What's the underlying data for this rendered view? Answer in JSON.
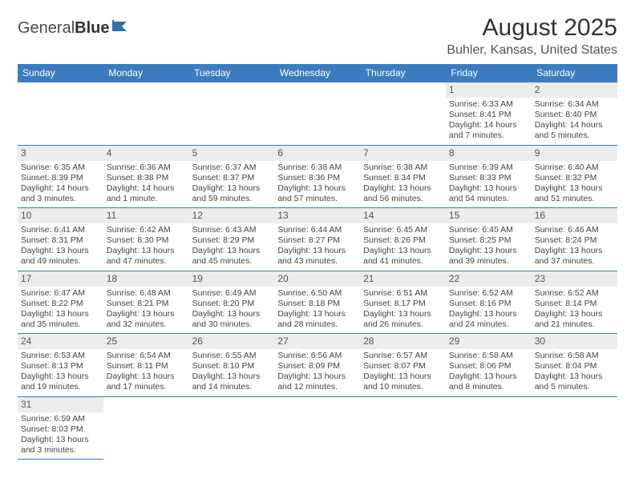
{
  "logo": {
    "word1": "General",
    "word2": "Blue",
    "accent_color": "#2f6fb0"
  },
  "title": "August 2025",
  "location": "Buhler, Kansas, United States",
  "colors": {
    "header_bg": "#3b7cc0",
    "header_text": "#ffffff",
    "border": "#3b7cc0",
    "daynum_bg": "#ececec",
    "text": "#444444"
  },
  "weekdays": [
    "Sunday",
    "Monday",
    "Tuesday",
    "Wednesday",
    "Thursday",
    "Friday",
    "Saturday"
  ],
  "weeks": [
    [
      null,
      null,
      null,
      null,
      null,
      {
        "n": "1",
        "sr": "Sunrise: 6:33 AM",
        "ss": "Sunset: 8:41 PM",
        "dl1": "Daylight: 14 hours",
        "dl2": "and 7 minutes."
      },
      {
        "n": "2",
        "sr": "Sunrise: 6:34 AM",
        "ss": "Sunset: 8:40 PM",
        "dl1": "Daylight: 14 hours",
        "dl2": "and 5 minutes."
      }
    ],
    [
      {
        "n": "3",
        "sr": "Sunrise: 6:35 AM",
        "ss": "Sunset: 8:39 PM",
        "dl1": "Daylight: 14 hours",
        "dl2": "and 3 minutes."
      },
      {
        "n": "4",
        "sr": "Sunrise: 6:36 AM",
        "ss": "Sunset: 8:38 PM",
        "dl1": "Daylight: 14 hours",
        "dl2": "and 1 minute."
      },
      {
        "n": "5",
        "sr": "Sunrise: 6:37 AM",
        "ss": "Sunset: 8:37 PM",
        "dl1": "Daylight: 13 hours",
        "dl2": "and 59 minutes."
      },
      {
        "n": "6",
        "sr": "Sunrise: 6:38 AM",
        "ss": "Sunset: 8:36 PM",
        "dl1": "Daylight: 13 hours",
        "dl2": "and 57 minutes."
      },
      {
        "n": "7",
        "sr": "Sunrise: 6:38 AM",
        "ss": "Sunset: 8:34 PM",
        "dl1": "Daylight: 13 hours",
        "dl2": "and 56 minutes."
      },
      {
        "n": "8",
        "sr": "Sunrise: 6:39 AM",
        "ss": "Sunset: 8:33 PM",
        "dl1": "Daylight: 13 hours",
        "dl2": "and 54 minutes."
      },
      {
        "n": "9",
        "sr": "Sunrise: 6:40 AM",
        "ss": "Sunset: 8:32 PM",
        "dl1": "Daylight: 13 hours",
        "dl2": "and 51 minutes."
      }
    ],
    [
      {
        "n": "10",
        "sr": "Sunrise: 6:41 AM",
        "ss": "Sunset: 8:31 PM",
        "dl1": "Daylight: 13 hours",
        "dl2": "and 49 minutes."
      },
      {
        "n": "11",
        "sr": "Sunrise: 6:42 AM",
        "ss": "Sunset: 8:30 PM",
        "dl1": "Daylight: 13 hours",
        "dl2": "and 47 minutes."
      },
      {
        "n": "12",
        "sr": "Sunrise: 6:43 AM",
        "ss": "Sunset: 8:29 PM",
        "dl1": "Daylight: 13 hours",
        "dl2": "and 45 minutes."
      },
      {
        "n": "13",
        "sr": "Sunrise: 6:44 AM",
        "ss": "Sunset: 8:27 PM",
        "dl1": "Daylight: 13 hours",
        "dl2": "and 43 minutes."
      },
      {
        "n": "14",
        "sr": "Sunrise: 6:45 AM",
        "ss": "Sunset: 8:26 PM",
        "dl1": "Daylight: 13 hours",
        "dl2": "and 41 minutes."
      },
      {
        "n": "15",
        "sr": "Sunrise: 6:45 AM",
        "ss": "Sunset: 8:25 PM",
        "dl1": "Daylight: 13 hours",
        "dl2": "and 39 minutes."
      },
      {
        "n": "16",
        "sr": "Sunrise: 6:46 AM",
        "ss": "Sunset: 8:24 PM",
        "dl1": "Daylight: 13 hours",
        "dl2": "and 37 minutes."
      }
    ],
    [
      {
        "n": "17",
        "sr": "Sunrise: 6:47 AM",
        "ss": "Sunset: 8:22 PM",
        "dl1": "Daylight: 13 hours",
        "dl2": "and 35 minutes."
      },
      {
        "n": "18",
        "sr": "Sunrise: 6:48 AM",
        "ss": "Sunset: 8:21 PM",
        "dl1": "Daylight: 13 hours",
        "dl2": "and 32 minutes."
      },
      {
        "n": "19",
        "sr": "Sunrise: 6:49 AM",
        "ss": "Sunset: 8:20 PM",
        "dl1": "Daylight: 13 hours",
        "dl2": "and 30 minutes."
      },
      {
        "n": "20",
        "sr": "Sunrise: 6:50 AM",
        "ss": "Sunset: 8:18 PM",
        "dl1": "Daylight: 13 hours",
        "dl2": "and 28 minutes."
      },
      {
        "n": "21",
        "sr": "Sunrise: 6:51 AM",
        "ss": "Sunset: 8:17 PM",
        "dl1": "Daylight: 13 hours",
        "dl2": "and 26 minutes."
      },
      {
        "n": "22",
        "sr": "Sunrise: 6:52 AM",
        "ss": "Sunset: 8:16 PM",
        "dl1": "Daylight: 13 hours",
        "dl2": "and 24 minutes."
      },
      {
        "n": "23",
        "sr": "Sunrise: 6:52 AM",
        "ss": "Sunset: 8:14 PM",
        "dl1": "Daylight: 13 hours",
        "dl2": "and 21 minutes."
      }
    ],
    [
      {
        "n": "24",
        "sr": "Sunrise: 6:53 AM",
        "ss": "Sunset: 8:13 PM",
        "dl1": "Daylight: 13 hours",
        "dl2": "and 19 minutes."
      },
      {
        "n": "25",
        "sr": "Sunrise: 6:54 AM",
        "ss": "Sunset: 8:11 PM",
        "dl1": "Daylight: 13 hours",
        "dl2": "and 17 minutes."
      },
      {
        "n": "26",
        "sr": "Sunrise: 6:55 AM",
        "ss": "Sunset: 8:10 PM",
        "dl1": "Daylight: 13 hours",
        "dl2": "and 14 minutes."
      },
      {
        "n": "27",
        "sr": "Sunrise: 6:56 AM",
        "ss": "Sunset: 8:09 PM",
        "dl1": "Daylight: 13 hours",
        "dl2": "and 12 minutes."
      },
      {
        "n": "28",
        "sr": "Sunrise: 6:57 AM",
        "ss": "Sunset: 8:07 PM",
        "dl1": "Daylight: 13 hours",
        "dl2": "and 10 minutes."
      },
      {
        "n": "29",
        "sr": "Sunrise: 6:58 AM",
        "ss": "Sunset: 8:06 PM",
        "dl1": "Daylight: 13 hours",
        "dl2": "and 8 minutes."
      },
      {
        "n": "30",
        "sr": "Sunrise: 6:58 AM",
        "ss": "Sunset: 8:04 PM",
        "dl1": "Daylight: 13 hours",
        "dl2": "and 5 minutes."
      }
    ],
    [
      {
        "n": "31",
        "sr": "Sunrise: 6:59 AM",
        "ss": "Sunset: 8:03 PM",
        "dl1": "Daylight: 13 hours",
        "dl2": "and 3 minutes."
      },
      null,
      null,
      null,
      null,
      null,
      null
    ]
  ]
}
